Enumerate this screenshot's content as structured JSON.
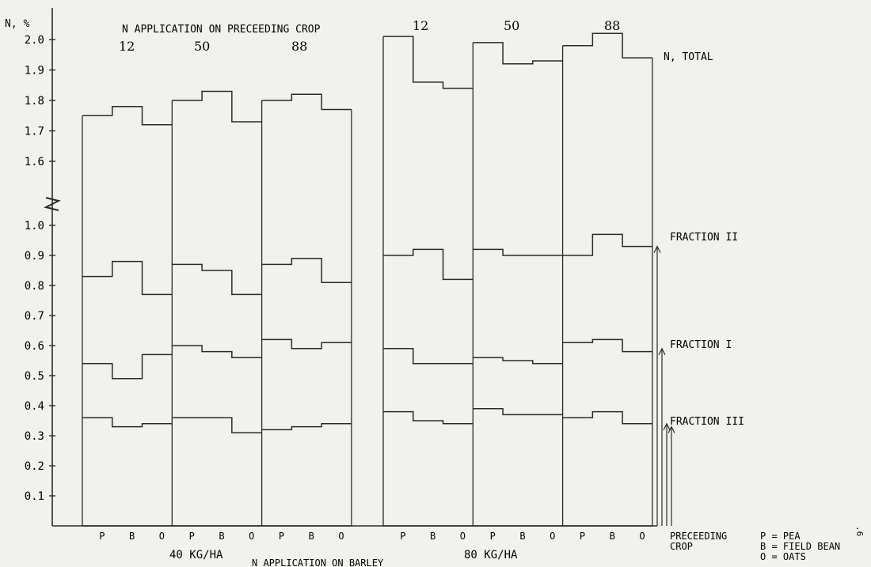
{
  "chart_data": {
    "type": "step",
    "y_axis": {
      "label": "N, %",
      "ticks": [
        "0.1",
        "0.2",
        "0.3",
        "0.4",
        "0.5",
        "0.6",
        "0.7",
        "0.8",
        "0.9",
        "1.0",
        "1.6",
        "1.7",
        "1.8",
        "1.9",
        "2.0"
      ],
      "lower_range": [
        0,
        1.0
      ],
      "upper_range": [
        1.55,
        2.05
      ],
      "axis_break_between": [
        1.0,
        1.55
      ]
    },
    "header_label": "N APPLICATION ON PRECEEDING CROP",
    "x_axis": {
      "label": "N APPLICATION ON BARLEY",
      "groups": [
        {
          "label": "40 KG/HA",
          "blocks": [
            12,
            50,
            88
          ],
          "block_labels": [
            "12",
            "50",
            "88"
          ]
        },
        {
          "label": "80 KG/HA",
          "blocks": [
            12,
            50,
            88
          ],
          "block_labels": [
            "12",
            "50",
            "88"
          ]
        }
      ],
      "crop_ticks": [
        "P",
        "B",
        "O"
      ]
    },
    "crop_legend": {
      "title_1": "PRECEEDING",
      "title_2": "CROP",
      "entries": [
        "P = PEA",
        "B = FIELD BEAN",
        "O = OATS"
      ]
    },
    "series": [
      {
        "name": "N, TOTAL",
        "values": [
          [
            1.75,
            1.78,
            1.72
          ],
          [
            1.8,
            1.83,
            1.73
          ],
          [
            1.8,
            1.82,
            1.77
          ],
          [
            2.01,
            1.86,
            1.84
          ],
          [
            1.99,
            1.92,
            1.93
          ],
          [
            1.98,
            2.02,
            1.94
          ]
        ]
      },
      {
        "name": "FRACTION II",
        "values": [
          [
            0.83,
            0.88,
            0.77
          ],
          [
            0.87,
            0.85,
            0.77
          ],
          [
            0.87,
            0.89,
            0.81
          ],
          [
            0.9,
            0.92,
            0.82
          ],
          [
            0.92,
            0.9,
            0.9
          ],
          [
            0.9,
            0.97,
            0.93
          ]
        ]
      },
      {
        "name": "FRACTION I",
        "values": [
          [
            0.54,
            0.49,
            0.57
          ],
          [
            0.6,
            0.58,
            0.56
          ],
          [
            0.62,
            0.59,
            0.61
          ],
          [
            0.59,
            0.54,
            0.54
          ],
          [
            0.56,
            0.55,
            0.54
          ],
          [
            0.61,
            0.62,
            0.58
          ]
        ]
      },
      {
        "name": "FRACTION III",
        "values": [
          [
            0.36,
            0.33,
            0.34
          ],
          [
            0.36,
            0.36,
            0.31
          ],
          [
            0.32,
            0.33,
            0.34
          ],
          [
            0.38,
            0.35,
            0.34
          ],
          [
            0.39,
            0.37,
            0.37
          ],
          [
            0.36,
            0.38,
            0.34
          ]
        ]
      }
    ],
    "page_mark": ".6"
  }
}
